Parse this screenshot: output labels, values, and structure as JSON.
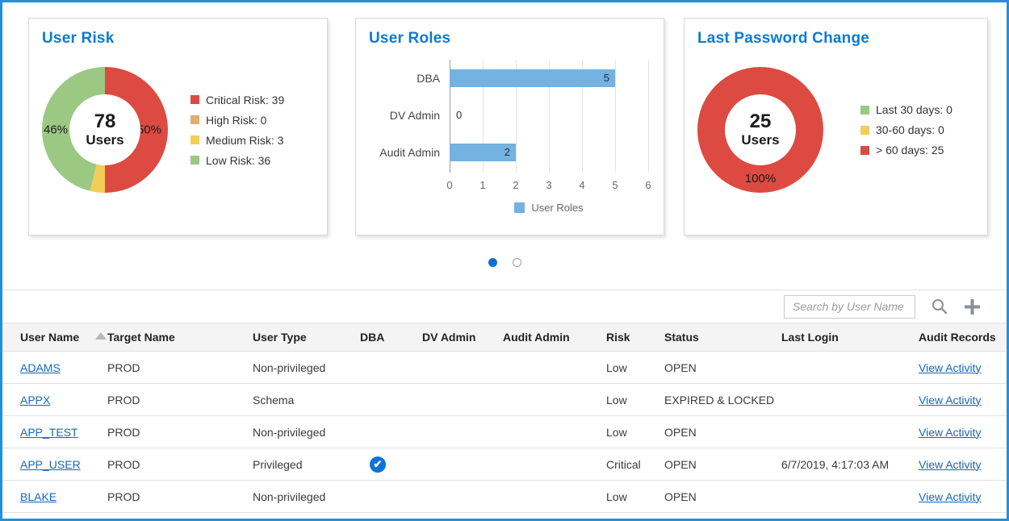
{
  "frame": {
    "accent_color": "#2191d9",
    "title_color": "#0d7ad3"
  },
  "chart_data": [
    {
      "id": "user_risk",
      "type": "pie",
      "subtype": "donut",
      "title": "User Risk",
      "center_value": "78",
      "center_label": "Users",
      "slices": [
        {
          "name": "Critical Risk",
          "value": 39,
          "color": "#dc4a41",
          "pct_label": "50%"
        },
        {
          "name": "High Risk",
          "value": 0,
          "color": "#e2ae73"
        },
        {
          "name": "Medium Risk",
          "value": 3,
          "color": "#f0ce58"
        },
        {
          "name": "Low Risk",
          "value": 36,
          "color": "#9bc883",
          "pct_label": "46%"
        }
      ],
      "legend": [
        {
          "label": "Critical Risk: 39",
          "color": "#dc4a41"
        },
        {
          "label": "High Risk: 0",
          "color": "#e2ae73"
        },
        {
          "label": "Medium Risk: 3",
          "color": "#f0ce58"
        },
        {
          "label": "Low Risk: 36",
          "color": "#9bc883"
        }
      ],
      "legend_position": "right"
    },
    {
      "id": "user_roles",
      "type": "bar",
      "orientation": "horizontal",
      "title": "User Roles",
      "categories": [
        "DBA",
        "DV Admin",
        "Audit Admin"
      ],
      "values": [
        5,
        0,
        2
      ],
      "xlim": [
        0,
        6
      ],
      "x_ticks": [
        0,
        1,
        2,
        3,
        4,
        5,
        6
      ],
      "bar_color": "#74b2e2",
      "grid": true,
      "legend": [
        {
          "label": "User Roles",
          "color": "#74b2e2"
        }
      ],
      "legend_position": "bottom"
    },
    {
      "id": "last_password_change",
      "type": "pie",
      "subtype": "donut",
      "title": "Last Password Change",
      "center_value": "25",
      "center_label": "Users",
      "slices": [
        {
          "name": "Last 30 days",
          "value": 0,
          "color": "#9bc883"
        },
        {
          "name": "30-60 days",
          "value": 0,
          "color": "#f0ce58"
        },
        {
          "name": "> 60 days",
          "value": 25,
          "color": "#dc4a41",
          "pct_label": "100%"
        }
      ],
      "legend": [
        {
          "label": "Last 30 days: 0",
          "color": "#9bc883"
        },
        {
          "label": "30-60 days: 0",
          "color": "#f0ce58"
        },
        {
          "label": "> 60 days: 25",
          "color": "#dc4a41"
        }
      ],
      "legend_position": "right"
    }
  ],
  "pagination": {
    "dot_count": 2,
    "active_index": 0
  },
  "toolbar": {
    "search_placeholder": "Search by User Name"
  },
  "table": {
    "columns": [
      {
        "label": "User Name",
        "sort": "asc"
      },
      {
        "label": "Target Name"
      },
      {
        "label": "User Type"
      },
      {
        "label": "DBA"
      },
      {
        "label": "DV Admin"
      },
      {
        "label": "Audit Admin"
      },
      {
        "label": "Risk"
      },
      {
        "label": "Status"
      },
      {
        "label": "Last Login"
      },
      {
        "label": "Audit Records"
      }
    ],
    "rows": [
      {
        "user_name": "ADAMS",
        "target_name": "PROD",
        "user_type": "Non-privileged",
        "dba": false,
        "dv_admin": false,
        "audit_admin": false,
        "risk": "Low",
        "status": "OPEN",
        "last_login": "",
        "audit_records": "View Activity"
      },
      {
        "user_name": "APPX",
        "target_name": "PROD",
        "user_type": "Schema",
        "dba": false,
        "dv_admin": false,
        "audit_admin": false,
        "risk": "Low",
        "status": "EXPIRED & LOCKED",
        "last_login": "",
        "audit_records": "View Activity"
      },
      {
        "user_name": "APP_TEST",
        "target_name": "PROD",
        "user_type": "Non-privileged",
        "dba": false,
        "dv_admin": false,
        "audit_admin": false,
        "risk": "Low",
        "status": "OPEN",
        "last_login": "",
        "audit_records": "View Activity"
      },
      {
        "user_name": "APP_USER",
        "target_name": "PROD",
        "user_type": "Privileged",
        "dba": true,
        "dv_admin": false,
        "audit_admin": false,
        "risk": "Critical",
        "status": "OPEN",
        "last_login": "6/7/2019, 4:17:03 AM",
        "audit_records": "View Activity"
      },
      {
        "user_name": "BLAKE",
        "target_name": "PROD",
        "user_type": "Non-privileged",
        "dba": false,
        "dv_admin": false,
        "audit_admin": false,
        "risk": "Low",
        "status": "OPEN",
        "last_login": "",
        "audit_records": "View Activity"
      }
    ]
  }
}
